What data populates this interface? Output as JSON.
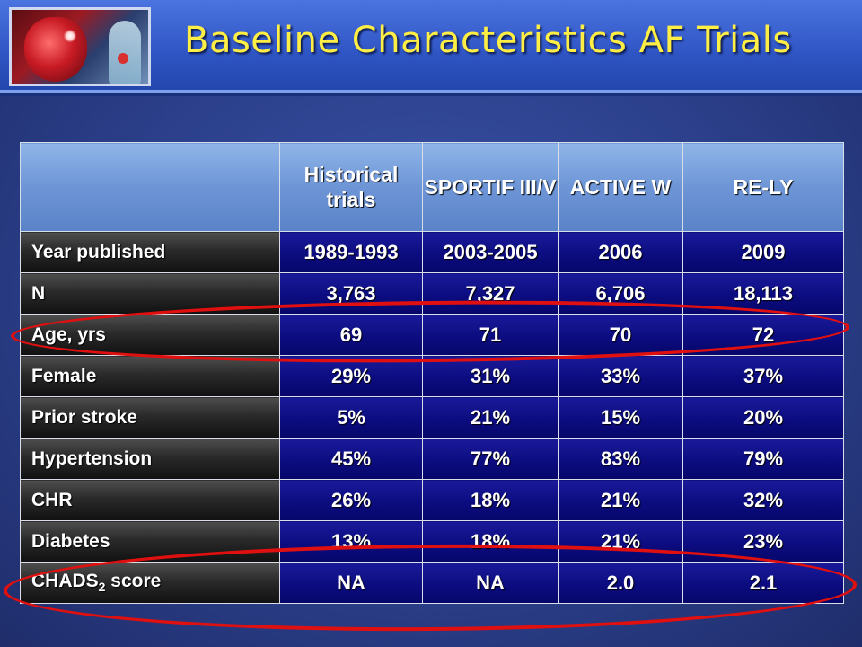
{
  "slide": {
    "title": "Baseline Characteristics AF Trials"
  },
  "table": {
    "columns": [
      "Historical trials",
      "SPORTIF III/V",
      "ACTIVE W",
      "RE-LY"
    ],
    "rows": [
      {
        "label": "Year published",
        "values": [
          "1989-1993",
          "2003-2005",
          "2006",
          "2009"
        ]
      },
      {
        "label": "N",
        "values": [
          "3,763",
          "7,327",
          "6,706",
          "18,113"
        ]
      },
      {
        "label": "Age, yrs",
        "values": [
          "69",
          "71",
          "70",
          "72"
        ]
      },
      {
        "label": "Female",
        "values": [
          "29%",
          "31%",
          "33%",
          "37%"
        ]
      },
      {
        "label": "Prior stroke",
        "values": [
          "5%",
          "21%",
          "15%",
          "20%"
        ]
      },
      {
        "label": "Hypertension",
        "values": [
          "45%",
          "77%",
          "83%",
          "79%"
        ]
      },
      {
        "label": "CHR",
        "values": [
          "26%",
          "18%",
          "21%",
          "32%"
        ]
      },
      {
        "label": "Diabetes",
        "values": [
          "13%",
          "18%",
          "21%",
          "23%"
        ]
      },
      {
        "label_main": "CHADS",
        "label_sub": "2",
        "label_tail": " score",
        "values": [
          "NA",
          "NA",
          "2.0",
          "2.1"
        ]
      }
    ]
  },
  "colors": {
    "title": "#ffee44",
    "highlight": "#e01010"
  },
  "icons": [
    "heart-anatomy-logo"
  ]
}
